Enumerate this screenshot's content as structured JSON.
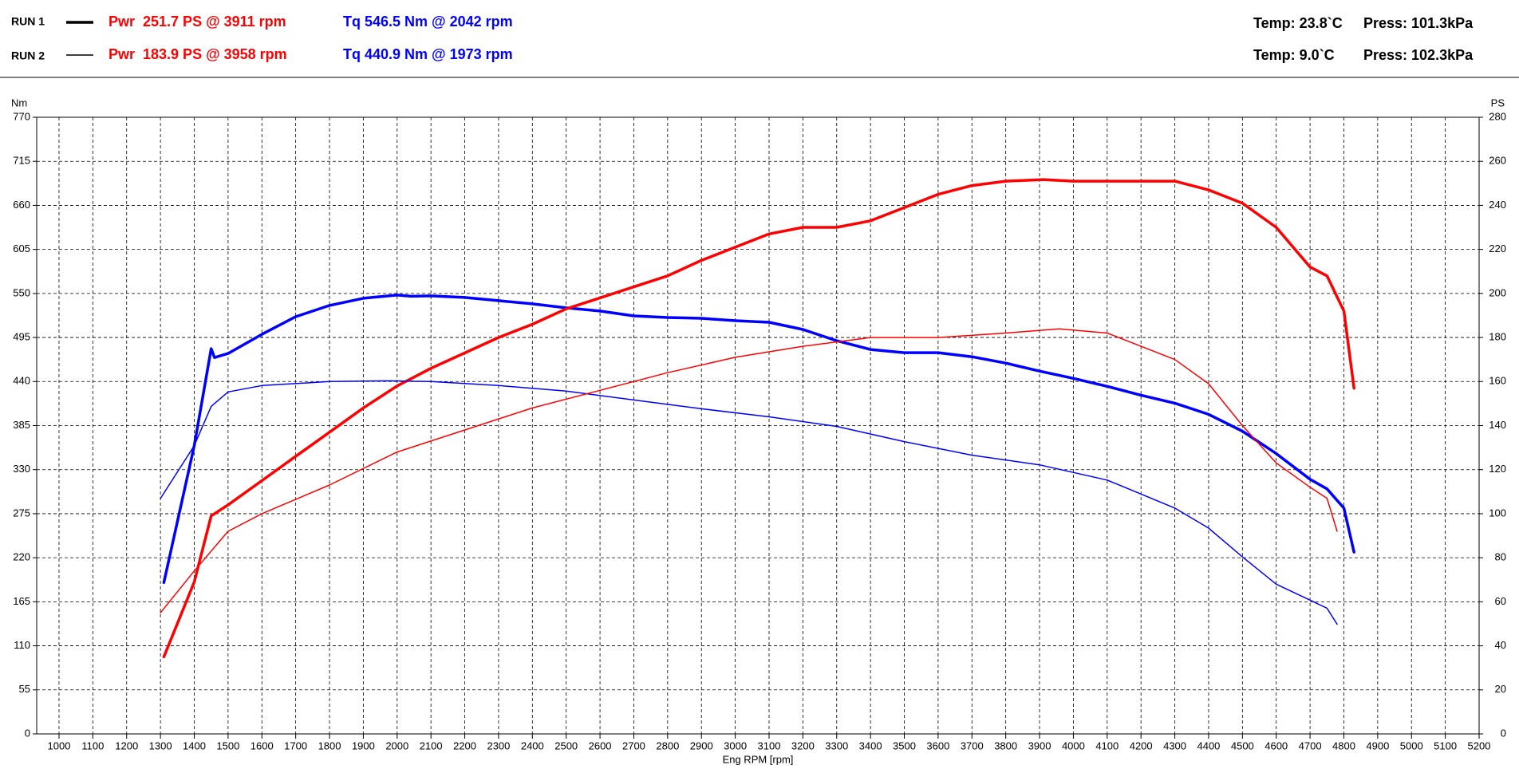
{
  "chart_data": {
    "type": "line",
    "runs": [
      {
        "label": "RUN 1",
        "power": "Pwr  251.7 PS @ 3911 rpm",
        "torque": "Tq 546.5 Nm @ 2042 rpm",
        "temp": "Temp: 23.8`C",
        "press": "Press: 101.3kPa"
      },
      {
        "label": "RUN 2",
        "power": "Pwr  183.9 PS @ 3958 rpm",
        "torque": "Tq 440.9 Nm @ 1973 rpm",
        "temp": "Temp: 9.0`C",
        "press": "Press: 102.3kPa"
      }
    ],
    "ylabel": "Nm",
    "y2label": "PS",
    "xlabel": "Eng RPM [rpm]",
    "xlim": [
      934,
      5200
    ],
    "xticks": [
      1000,
      1100,
      1200,
      1300,
      1400,
      1500,
      1600,
      1700,
      1800,
      1900,
      2000,
      2100,
      2200,
      2300,
      2400,
      2500,
      2600,
      2700,
      2800,
      2900,
      3000,
      3100,
      3200,
      3300,
      3400,
      3500,
      3600,
      3700,
      3800,
      3900,
      4000,
      4100,
      4200,
      4300,
      4400,
      4500,
      4600,
      4700,
      4800,
      4900,
      5000,
      5100,
      5200
    ],
    "ylim": [
      0,
      770
    ],
    "yticks": [
      0,
      55,
      110,
      165,
      220,
      275,
      330,
      385,
      440,
      495,
      550,
      605,
      660,
      715,
      770
    ],
    "y2lim": [
      0,
      280
    ],
    "y2ticks": [
      0,
      20,
      40,
      60,
      80,
      100,
      120,
      140,
      160,
      180,
      200,
      220,
      240,
      260,
      280
    ],
    "grid": true,
    "series": [
      {
        "color": "#0000ff",
        "width": 3.5,
        "x": [
          1310,
          1400,
          1450,
          1460,
          1500,
          1600,
          1700,
          1800,
          1900,
          2000,
          2042,
          2100,
          2200,
          2300,
          2400,
          2500,
          2600,
          2700,
          2800,
          2900,
          3000,
          3100,
          3200,
          3300,
          3400,
          3500,
          3600,
          3700,
          3800,
          3900,
          4000,
          4100,
          4200,
          4300,
          4400,
          4500,
          4600,
          4700,
          4750,
          4800,
          4830
        ],
        "values": [
          189,
          360,
          481,
          470,
          475,
          499,
          521,
          535,
          544,
          548,
          546.5,
          547,
          545,
          541,
          537,
          532,
          528,
          522,
          520,
          519,
          516,
          514,
          505,
          491,
          480,
          476,
          476,
          471,
          463,
          453,
          444,
          434,
          423,
          413,
          399,
          378,
          350,
          318,
          306,
          282,
          227
        ]
      },
      {
        "color": "#ff0000",
        "width": 3.5,
        "axis": "y2",
        "x": [
          1310,
          1400,
          1450,
          1500,
          1600,
          1700,
          1800,
          1900,
          2000,
          2100,
          2200,
          2300,
          2400,
          2500,
          2600,
          2700,
          2800,
          2900,
          3000,
          3100,
          3200,
          3300,
          3400,
          3500,
          3600,
          3700,
          3800,
          3911,
          4000,
          4100,
          4200,
          4300,
          4400,
          4500,
          4600,
          4700,
          4750,
          4800,
          4830
        ],
        "values": [
          35,
          69,
          99,
          104,
          115,
          126,
          137,
          148,
          158,
          166,
          173,
          180,
          186,
          193,
          198,
          203,
          208,
          215,
          221,
          227,
          230,
          230,
          233,
          239,
          245,
          249,
          251,
          251.7,
          251,
          251,
          251,
          251,
          247,
          241,
          230,
          212,
          208,
          192,
          157
        ]
      },
      {
        "color": "#0000ff",
        "width": 1.5,
        "x": [
          1300,
          1400,
          1450,
          1500,
          1600,
          1800,
          1973,
          2100,
          2300,
          2500,
          2700,
          2900,
          3100,
          3300,
          3500,
          3700,
          3900,
          4100,
          4300,
          4400,
          4500,
          4600,
          4700,
          4750,
          4780
        ],
        "values": [
          294,
          360,
          409,
          427,
          435,
          440,
          440.9,
          440,
          435,
          428,
          417,
          406,
          396,
          384,
          365,
          348,
          336,
          317,
          282,
          257,
          221,
          187,
          167,
          157,
          137
        ]
      },
      {
        "color": "#ff0000",
        "width": 1.5,
        "axis": "y2",
        "x": [
          1300,
          1400,
          1500,
          1600,
          1800,
          2000,
          2200,
          2400,
          2600,
          2800,
          3000,
          3200,
          3400,
          3600,
          3800,
          3958,
          4100,
          4300,
          4400,
          4500,
          4600,
          4700,
          4750,
          4780
        ],
        "values": [
          55,
          74,
          92,
          100,
          113,
          128,
          138,
          148,
          156,
          164,
          171,
          176,
          180,
          180,
          182,
          183.9,
          182,
          170,
          159,
          140,
          123,
          112,
          107,
          92
        ]
      }
    ]
  }
}
